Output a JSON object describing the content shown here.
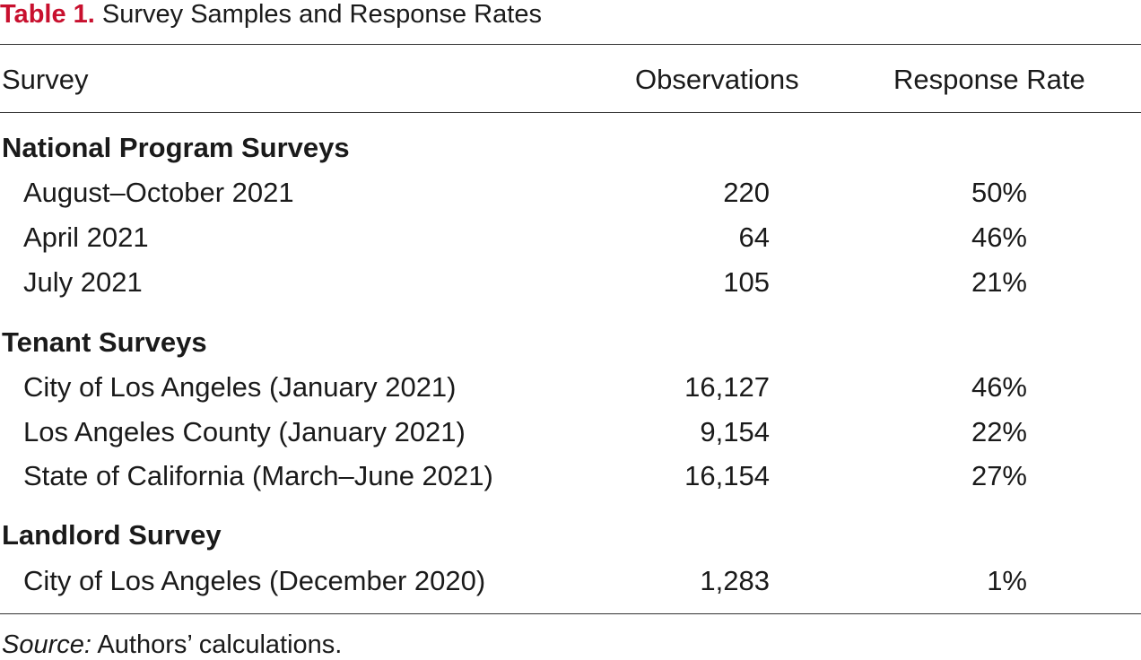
{
  "table": {
    "label": "Table 1.",
    "title": " Survey Samples and Response Rates",
    "headers": {
      "survey": "Survey",
      "observations": "Observations",
      "response_rate": "Response Rate"
    },
    "sections": [
      {
        "heading": "National Program Surveys",
        "rows": [
          {
            "name": "August–October 2021",
            "observations": "220",
            "response_rate": "50%"
          },
          {
            "name": "April 2021",
            "observations": "64",
            "response_rate": "46%"
          },
          {
            "name": "July 2021",
            "observations": "105",
            "response_rate": "21%"
          }
        ]
      },
      {
        "heading": "Tenant Surveys",
        "rows": [
          {
            "name": "City of Los Angeles (January 2021)",
            "observations": "16,127",
            "response_rate": "46%"
          },
          {
            "name": "Los Angeles County (January 2021)",
            "observations": "9,154",
            "response_rate": "22%"
          },
          {
            "name": "State of California (March–June 2021)",
            "observations": "16,154",
            "response_rate": "27%"
          }
        ]
      },
      {
        "heading": "Landlord Survey",
        "rows": [
          {
            "name": "City of Los Angeles (December 2020)",
            "observations": "1,283",
            "response_rate": "1%"
          }
        ]
      }
    ],
    "source_label": "Source:",
    "source_text": " Authors’ calculations."
  },
  "colors": {
    "label_red": "#c8102e",
    "text": "#1a1a1a",
    "rule": "#333333"
  }
}
